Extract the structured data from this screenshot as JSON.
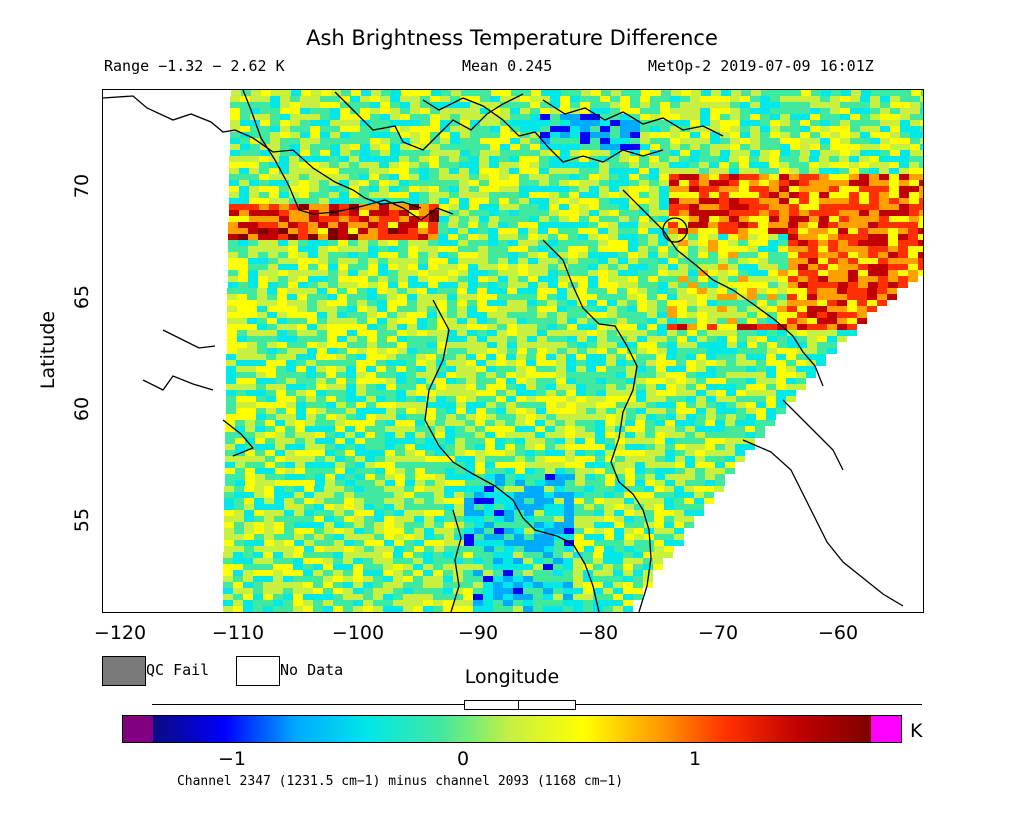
{
  "header": {
    "title": "Ash Brightness Temperature Difference",
    "range": "Range −1.32 − 2.62 K",
    "mean": "Mean 0.245",
    "satellite": "MetOp-2 2019-07-09 16:01Z"
  },
  "axes": {
    "xlabel": "Longitude",
    "ylabel": "Latitude",
    "x_ticks": [
      "−120",
      "−110",
      "−100",
      "−90",
      "−80",
      "−70",
      "−60"
    ],
    "y_ticks": [
      "70",
      "65",
      "60",
      "55"
    ]
  },
  "legend": {
    "qc_fail": "QC Fail",
    "qc_fail_color": "#7a7a7a",
    "no_data": "No Data",
    "no_data_color": "#ffffff"
  },
  "colorbar": {
    "ticks": [
      "−1",
      "0",
      "1"
    ],
    "unit": "K",
    "low_color": "#800080",
    "high_color": "#ff00ff",
    "stops": [
      "#0a0a80",
      "#0000ff",
      "#00aaff",
      "#00e8e8",
      "#40e8a0",
      "#c8f040",
      "#ffff00",
      "#ffa000",
      "#ff3000",
      "#c00000",
      "#800000"
    ]
  },
  "caption": "Channel 2347 (1231.5 cm−1) minus channel 2093 (1168 cm−1)",
  "map_data": {
    "lon_range": [
      -122,
      -54
    ],
    "lat_range": [
      51,
      74
    ],
    "value_range": [
      -1.32,
      2.62
    ],
    "mean": 0.245
  }
}
